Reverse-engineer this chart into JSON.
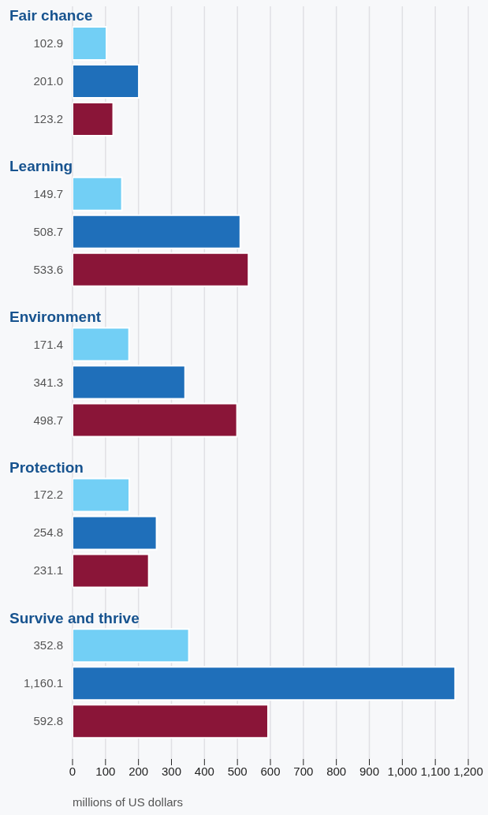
{
  "chart_data": {
    "type": "bar",
    "orientation": "horizontal",
    "categories": [
      "Fair chance",
      "Learning",
      "Environment",
      "Protection",
      "Survive and thrive"
    ],
    "series": [
      {
        "color": "#72cff5",
        "values": [
          102.9,
          149.7,
          171.4,
          172.2,
          352.8
        ],
        "value_labels": [
          "102.9",
          "149.7",
          "171.4",
          "172.2",
          "352.8"
        ]
      },
      {
        "color": "#1f6fba",
        "values": [
          201.0,
          508.7,
          341.3,
          254.8,
          1160.1
        ],
        "value_labels": [
          "201.0",
          "508.7",
          "341.3",
          "254.8",
          "1,160.1"
        ]
      },
      {
        "color": "#8a1538",
        "values": [
          123.2,
          533.6,
          498.7,
          231.1,
          592.8
        ],
        "value_labels": [
          "123.2",
          "533.6",
          "498.7",
          "231.1",
          "592.8"
        ]
      }
    ],
    "xlabel": "millions of US dollars",
    "xlim": [
      0,
      1200
    ],
    "xticks": [
      0,
      100,
      200,
      300,
      400,
      500,
      600,
      700,
      800,
      900,
      {
        "value": 1000,
        "label": "1,000"
      },
      {
        "value": 1100,
        "label": "1,100"
      },
      {
        "value": 1200,
        "label": "1,200"
      }
    ],
    "grid": "x"
  }
}
